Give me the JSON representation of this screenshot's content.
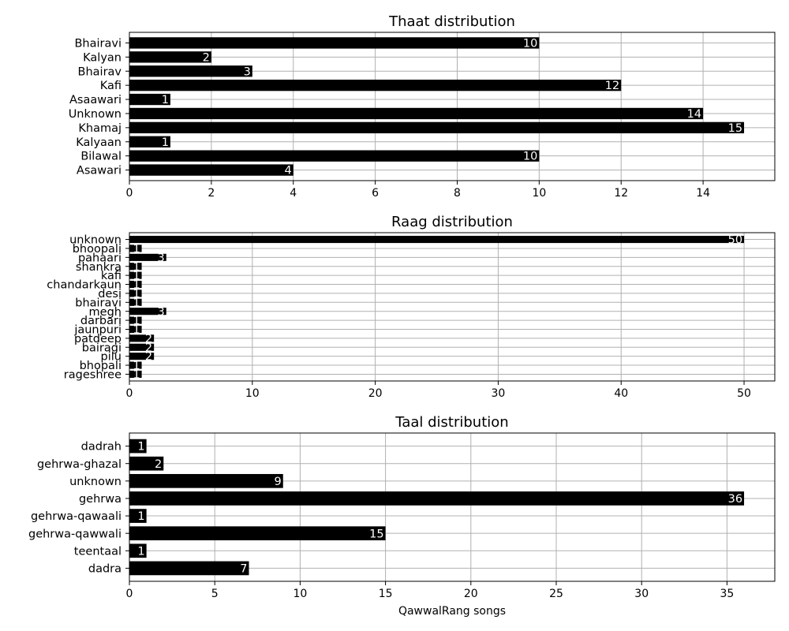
{
  "chart_data": [
    {
      "type": "bar",
      "orientation": "horizontal",
      "title": "Thaat distribution",
      "xlabel": "",
      "categories": [
        "Bhairavi",
        "Kalyan",
        "Bhairav",
        "Kafi",
        "Asaawari",
        "Unknown",
        "Khamaj",
        "Kalyaan",
        "Bilawal",
        "Asawari"
      ],
      "values": [
        10,
        2,
        3,
        12,
        1,
        14,
        15,
        1,
        10,
        4
      ],
      "xlim": [
        0,
        15.75
      ],
      "xticks": [
        0,
        2,
        4,
        6,
        8,
        10,
        12,
        14
      ],
      "grid": true,
      "bar_color": "#000000",
      "label_color": "#ffffff"
    },
    {
      "type": "bar",
      "orientation": "horizontal",
      "title": "Raag distribution",
      "xlabel": "",
      "categories": [
        "unknown",
        "bhoopali",
        "pahaari",
        "shankra",
        "kafi",
        "chandarkaun",
        "desi",
        "bhairavi",
        "megh",
        "darbari",
        "jaunpuri",
        "patdeep",
        "bairagi",
        "pilu",
        "bhopali",
        "rageshree"
      ],
      "values": [
        50,
        1,
        3,
        1,
        1,
        1,
        1,
        1,
        3,
        1,
        1,
        2,
        2,
        2,
        1,
        1
      ],
      "xlim": [
        0,
        52.5
      ],
      "xticks": [
        0,
        10,
        20,
        30,
        40,
        50
      ],
      "grid": true,
      "bar_color": "#000000",
      "label_color": "#ffffff"
    },
    {
      "type": "bar",
      "orientation": "horizontal",
      "title": "Taal distribution",
      "xlabel": "QawwalRang songs",
      "categories": [
        "dadrah",
        "gehrwa-ghazal",
        "unknown",
        "gehrwa",
        "gehrwa-qawaali",
        "gehrwa-qawwali",
        "teentaal",
        "dadra"
      ],
      "values": [
        1,
        2,
        9,
        36,
        1,
        15,
        1,
        7
      ],
      "xlim": [
        0,
        37.8
      ],
      "xticks": [
        0,
        5,
        10,
        15,
        20,
        25,
        30,
        35
      ],
      "grid": true,
      "bar_color": "#000000",
      "label_color": "#ffffff"
    }
  ]
}
